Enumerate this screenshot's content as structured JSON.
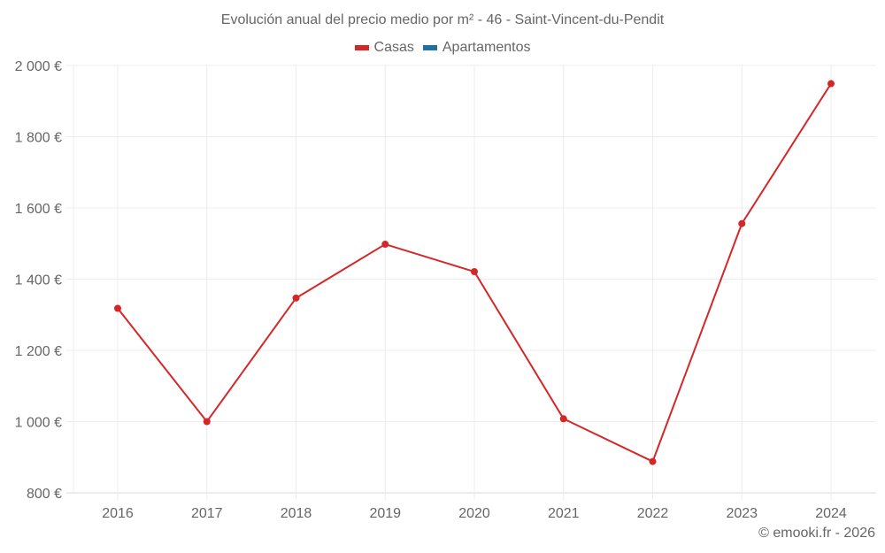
{
  "title": "Evolución anual del precio medio por m² - 46 - Saint-Vincent-du-Pendit",
  "legend": [
    {
      "label": "Casas",
      "color": "#d62728"
    },
    {
      "label": "Apartamentos",
      "color": "#1f6fa8"
    }
  ],
  "credit": "© emooki.fr - 2026",
  "y_ticks": [
    {
      "value": 2000,
      "label": "2 000 €"
    },
    {
      "value": 1800,
      "label": "1 800 €"
    },
    {
      "value": 1600,
      "label": "1 600 €"
    },
    {
      "value": 1400,
      "label": "1 400 €"
    },
    {
      "value": 1200,
      "label": "1 200 €"
    },
    {
      "value": 1000,
      "label": "1 000 €"
    },
    {
      "value": 800,
      "label": "800 €"
    }
  ],
  "chart_data": {
    "type": "line",
    "title": "Evolución anual del precio medio por m² - 46 - Saint-Vincent-du-Pendit",
    "xlabel": "",
    "ylabel": "",
    "categories": [
      "2016",
      "2017",
      "2018",
      "2019",
      "2020",
      "2021",
      "2022",
      "2023",
      "2024"
    ],
    "series": [
      {
        "name": "Casas",
        "color": "#d62728",
        "values": [
          1318,
          1000,
          1347,
          1498,
          1421,
          1008,
          888,
          1556,
          1949
        ]
      },
      {
        "name": "Apartamentos",
        "color": "#1f6fa8",
        "values": []
      }
    ],
    "ylim": [
      800,
      2000
    ],
    "y_tick_step": 200,
    "grid": true,
    "legend_position": "top"
  }
}
